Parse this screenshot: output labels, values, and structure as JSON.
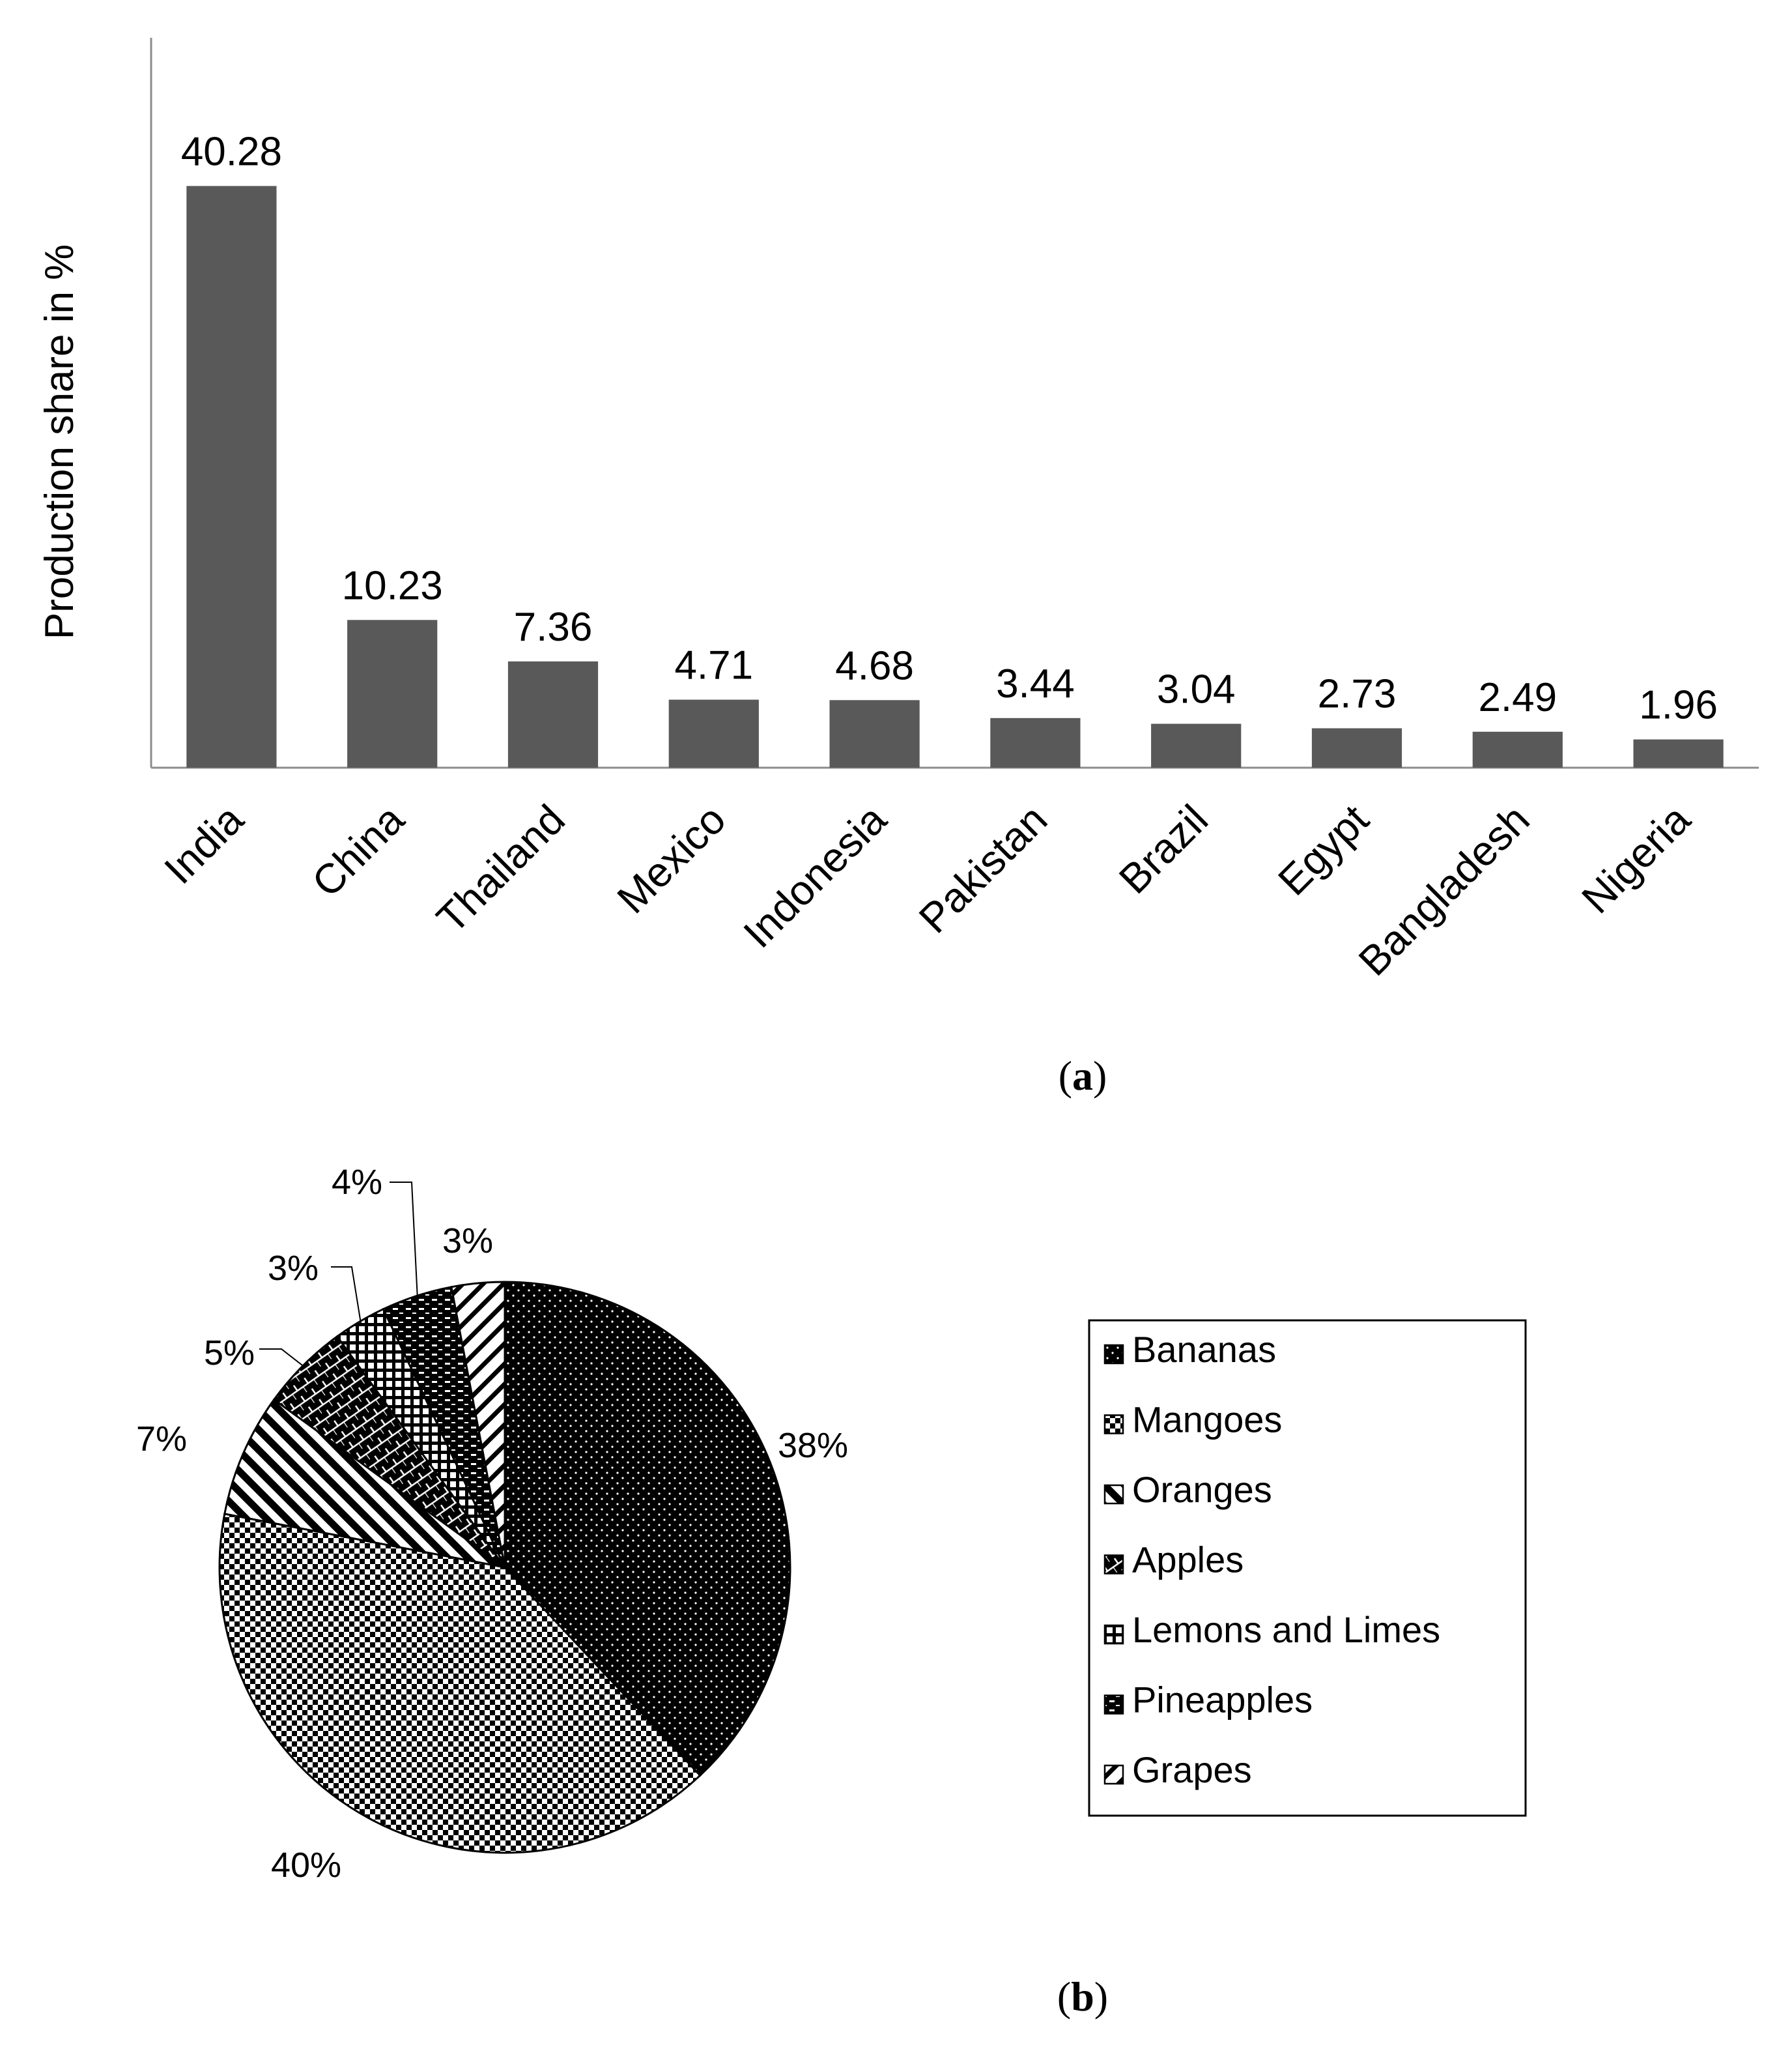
{
  "chart_data": [
    {
      "type": "bar",
      "panel_label": "a",
      "ylabel": "Production share in %",
      "categories": [
        "India",
        "China",
        "Thailand",
        "Mexico",
        "Indonesia",
        "Pakistan",
        "Brazil",
        "Egypt",
        "Bangladesh",
        "Nigeria"
      ],
      "values": [
        40.28,
        10.23,
        7.36,
        4.71,
        4.68,
        3.44,
        3.04,
        2.73,
        2.49,
        1.96
      ],
      "value_labels": [
        "40.28",
        "10.23",
        "7.36",
        "4.71",
        "4.68",
        "3.44",
        "3.04",
        "2.73",
        "2.49",
        "1.96"
      ],
      "ylim": [
        0,
        50
      ],
      "grid": false,
      "bar_color": "#595959"
    },
    {
      "type": "pie",
      "panel_label": "b",
      "labels": [
        "Bananas",
        "Mangoes",
        "Oranges",
        "Apples",
        "Lemons and Limes",
        "Pineapples",
        "Grapes"
      ],
      "values": [
        38,
        40,
        7,
        5,
        3,
        4,
        3
      ],
      "value_labels": [
        "38%",
        "40%",
        "7%",
        "5%",
        "3%",
        "4%",
        "3%"
      ],
      "legend_position": "right",
      "patterns": [
        "dark-dotted",
        "checker",
        "diagonal-stripes",
        "bricks",
        "grid",
        "dark-dashes",
        "light-diagonal"
      ]
    }
  ],
  "captions": {
    "a": "a",
    "b": "b"
  }
}
